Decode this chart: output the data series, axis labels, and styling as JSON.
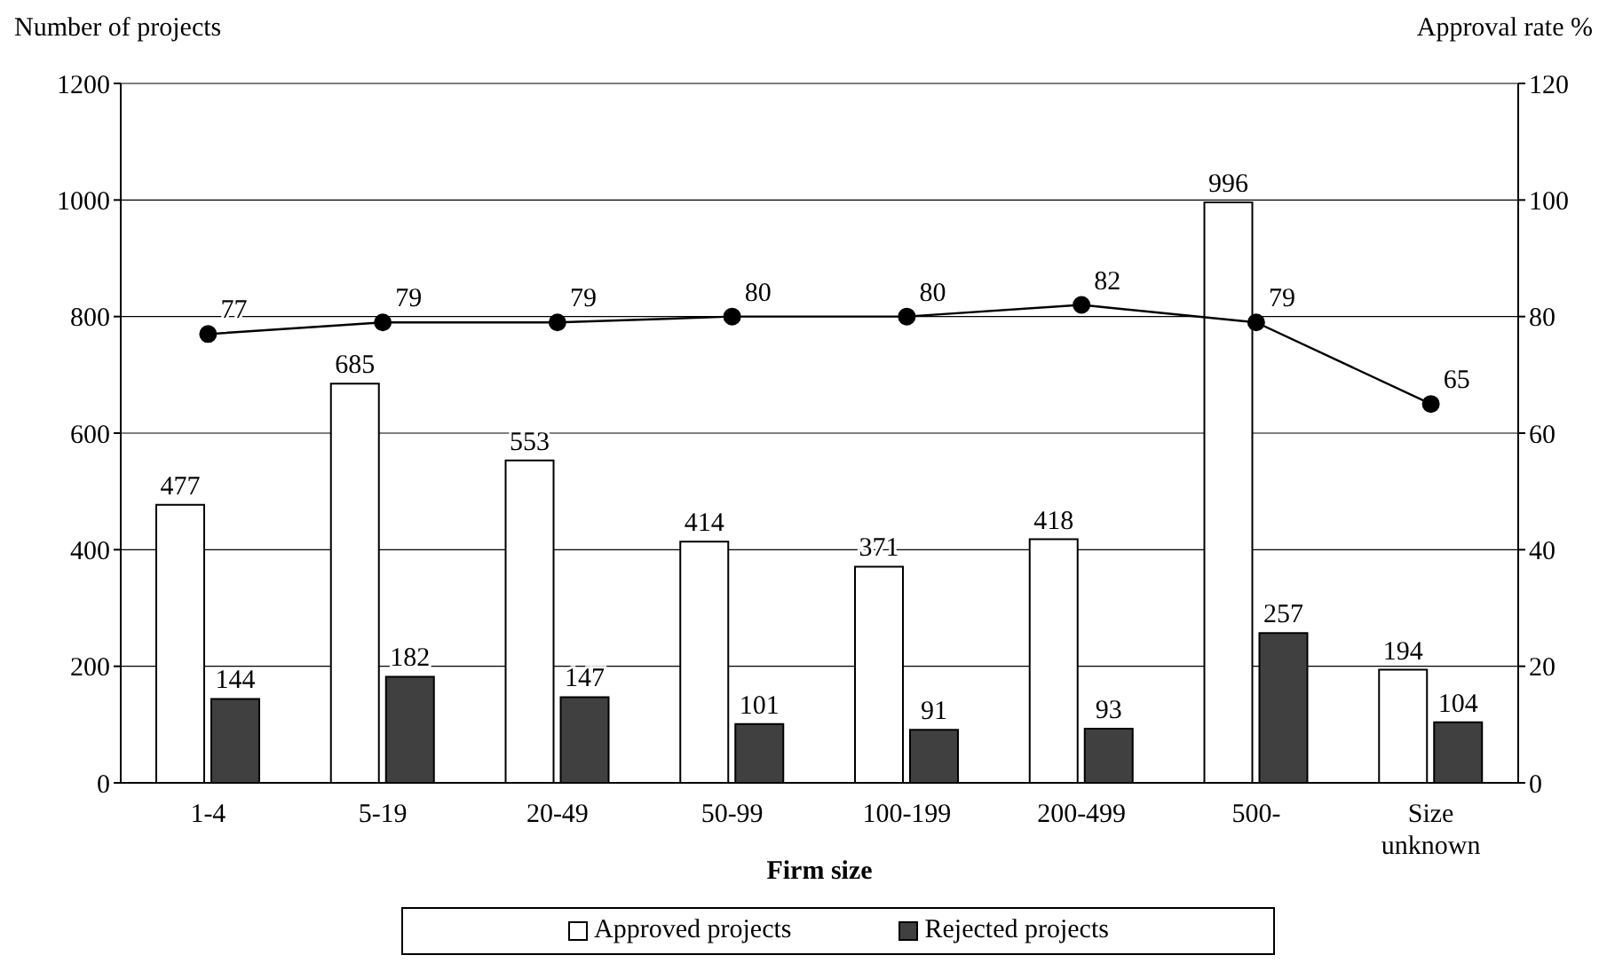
{
  "chart_data": {
    "type": "bar",
    "categories": [
      "1-4",
      "5-19",
      "20-49",
      "50-99",
      "100-199",
      "200-499",
      "500-",
      "Size unknown"
    ],
    "xlabel": "Firm size",
    "ylabel": "Number of projects",
    "y2label": "Approval rate %",
    "series": [
      {
        "name": "Approved projects",
        "color": "#ffffff",
        "values": [
          477,
          685,
          553,
          414,
          371,
          418,
          996,
          194
        ]
      },
      {
        "name": "Rejected projects",
        "color": "#404040",
        "values": [
          144,
          182,
          147,
          101,
          91,
          93,
          257,
          104
        ]
      },
      {
        "type": "line",
        "axis": "y2",
        "color": "#000000",
        "marker": "circle",
        "values": [
          77,
          79,
          79,
          80,
          80,
          82,
          79,
          65
        ]
      }
    ],
    "ylim": [
      0,
      1200
    ],
    "yticks": [
      0,
      200,
      400,
      600,
      800,
      1000,
      1200
    ],
    "y2lim": [
      0,
      120
    ],
    "y2ticks": [
      0,
      20,
      40,
      60,
      80,
      100,
      120
    ],
    "grid": "y",
    "legend": "bottom",
    "data_labels": true
  }
}
